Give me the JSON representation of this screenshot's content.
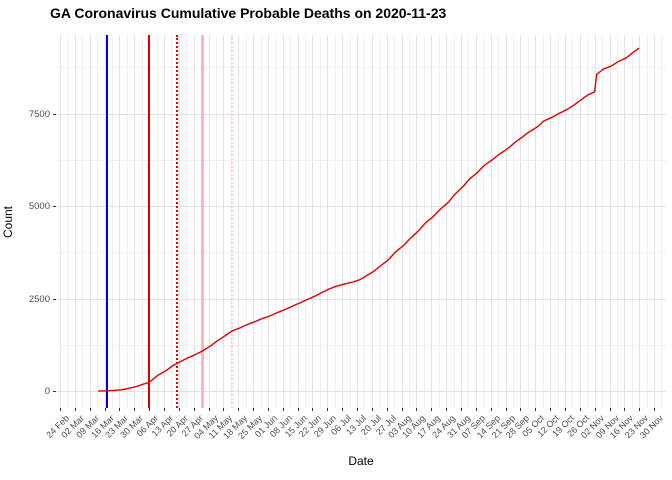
{
  "title": "GA Coronavirus Cumulative Probable Deaths on 2020-11-23",
  "chart_data": {
    "type": "line",
    "title": "GA Coronavirus Cumulative Probable Deaths on 2020-11-23",
    "xlabel": "Date",
    "ylabel": "Count",
    "x_range": [
      "2020-02-24",
      "2020-11-30"
    ],
    "ylim": [
      0,
      9630
    ],
    "y_ticks": [
      0,
      2500,
      5000,
      7500
    ],
    "y_tick_labels": [
      "0",
      "2500",
      "5000",
      "7500"
    ],
    "y_minor_ticks": [
      1250,
      3750,
      6250,
      8750
    ],
    "grid": "major-and-minor-light-gray",
    "legend": "none",
    "x_tick_labels": [
      "24 Feb",
      "02 Mar",
      "09 Mar",
      "16 Mar",
      "23 Mar",
      "30 Mar",
      "06 Apr",
      "13 Apr",
      "20 Apr",
      "27 Apr",
      "04 May",
      "11 May",
      "18 May",
      "25 May",
      "01 Jun",
      "08 Jun",
      "15 Jun",
      "22 Jun",
      "29 Jun",
      "06 Jul",
      "13 Jul",
      "20 Jul",
      "27 Jul",
      "03 Aug",
      "10 Aug",
      "17 Aug",
      "24 Aug",
      "31 Aug",
      "07 Sep",
      "14 Sep",
      "21 Sep",
      "28 Sep",
      "05 Oct",
      "12 Oct",
      "19 Oct",
      "26 Oct",
      "02 Nov",
      "09 Nov",
      "16 Nov",
      "23 Nov",
      "30 Nov"
    ],
    "event_lines": [
      {
        "name": "vline-blue-solid",
        "date": "2020-03-17",
        "color": "#0000dd",
        "style": "solid",
        "width": 2
      },
      {
        "name": "vline-red-solid",
        "date": "2020-04-06",
        "color": "#dd0000",
        "style": "solid",
        "width": 2
      },
      {
        "name": "vline-red-dotted",
        "date": "2020-04-19",
        "color": "#dd0000",
        "style": "dotted",
        "width": 2
      },
      {
        "name": "vline-pink-solid",
        "date": "2020-05-01",
        "color": "#ffb3be",
        "style": "solid",
        "width": 3
      },
      {
        "name": "vline-pink-dotted",
        "date": "2020-05-15",
        "color": "#ffc9d2",
        "style": "dotted",
        "width": 2
      }
    ],
    "series": [
      {
        "name": "cumulative-probable-deaths",
        "color": "#dd0000",
        "points": [
          [
            "2020-03-13",
            1
          ],
          [
            "2020-03-17",
            3
          ],
          [
            "2020-03-20",
            14
          ],
          [
            "2020-03-24",
            32
          ],
          [
            "2020-03-27",
            65
          ],
          [
            "2020-03-31",
            120
          ],
          [
            "2020-04-03",
            180
          ],
          [
            "2020-04-06",
            230
          ],
          [
            "2020-04-10",
            420
          ],
          [
            "2020-04-14",
            550
          ],
          [
            "2020-04-17",
            680
          ],
          [
            "2020-04-21",
            800
          ],
          [
            "2020-04-24",
            890
          ],
          [
            "2020-04-28",
            990
          ],
          [
            "2020-05-01",
            1080
          ],
          [
            "2020-05-05",
            1220
          ],
          [
            "2020-05-08",
            1350
          ],
          [
            "2020-05-12",
            1500
          ],
          [
            "2020-05-15",
            1620
          ],
          [
            "2020-05-19",
            1710
          ],
          [
            "2020-05-22",
            1790
          ],
          [
            "2020-05-26",
            1880
          ],
          [
            "2020-05-29",
            1950
          ],
          [
            "2020-06-02",
            2030
          ],
          [
            "2020-06-05",
            2110
          ],
          [
            "2020-06-09",
            2200
          ],
          [
            "2020-06-12",
            2280
          ],
          [
            "2020-06-16",
            2380
          ],
          [
            "2020-06-19",
            2460
          ],
          [
            "2020-06-23",
            2560
          ],
          [
            "2020-06-26",
            2650
          ],
          [
            "2020-06-30",
            2760
          ],
          [
            "2020-07-03",
            2830
          ],
          [
            "2020-07-07",
            2890
          ],
          [
            "2020-07-10",
            2930
          ],
          [
            "2020-07-14",
            3000
          ],
          [
            "2020-07-17",
            3100
          ],
          [
            "2020-07-21",
            3240
          ],
          [
            "2020-07-24",
            3380
          ],
          [
            "2020-07-28",
            3560
          ],
          [
            "2020-07-31",
            3750
          ],
          [
            "2020-08-04",
            3940
          ],
          [
            "2020-08-07",
            4120
          ],
          [
            "2020-08-11",
            4330
          ],
          [
            "2020-08-14",
            4530
          ],
          [
            "2020-08-18",
            4720
          ],
          [
            "2020-08-21",
            4900
          ],
          [
            "2020-08-25",
            5100
          ],
          [
            "2020-08-28",
            5310
          ],
          [
            "2020-09-01",
            5530
          ],
          [
            "2020-09-04",
            5730
          ],
          [
            "2020-09-08",
            5920
          ],
          [
            "2020-09-11",
            6100
          ],
          [
            "2020-09-15",
            6260
          ],
          [
            "2020-09-18",
            6400
          ],
          [
            "2020-09-22",
            6550
          ],
          [
            "2020-09-25",
            6700
          ],
          [
            "2020-09-29",
            6870
          ],
          [
            "2020-10-02",
            7000
          ],
          [
            "2020-10-06",
            7140
          ],
          [
            "2020-10-09",
            7300
          ],
          [
            "2020-10-13",
            7400
          ],
          [
            "2020-10-16",
            7500
          ],
          [
            "2020-10-20",
            7610
          ],
          [
            "2020-10-23",
            7720
          ],
          [
            "2020-10-27",
            7890
          ],
          [
            "2020-10-30",
            8010
          ],
          [
            "2020-11-01",
            8060
          ],
          [
            "2020-11-02",
            8090
          ],
          [
            "2020-11-03",
            8560
          ],
          [
            "2020-11-06",
            8700
          ],
          [
            "2020-11-10",
            8790
          ],
          [
            "2020-11-13",
            8900
          ],
          [
            "2020-11-17",
            9010
          ],
          [
            "2020-11-20",
            9150
          ],
          [
            "2020-11-23",
            9270
          ]
        ]
      }
    ]
  }
}
